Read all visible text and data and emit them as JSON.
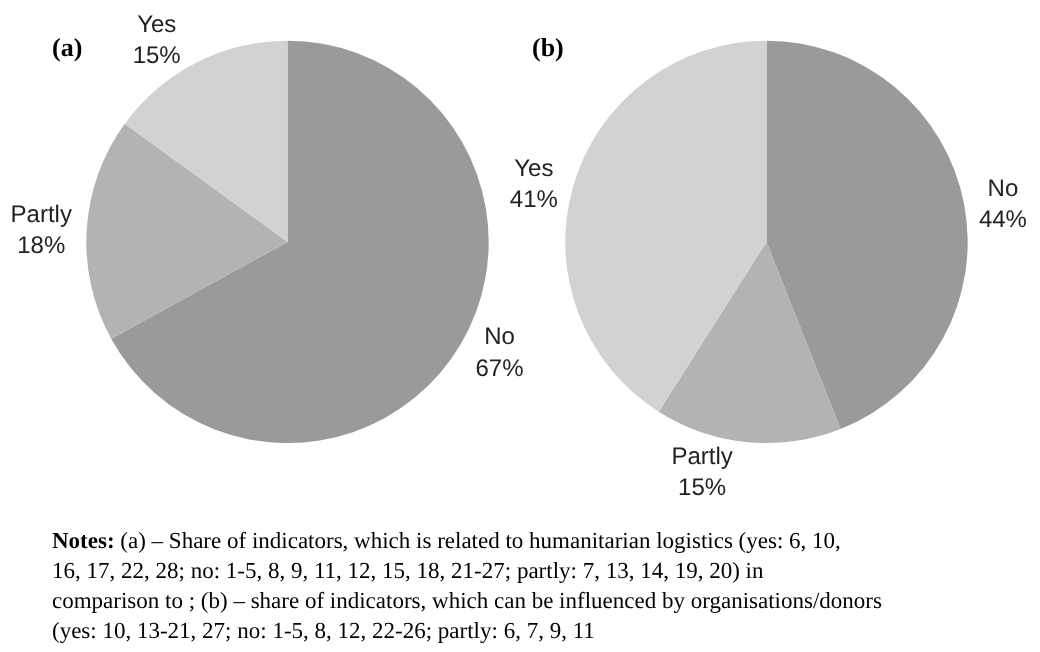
{
  "chart_data": [
    {
      "type": "pie",
      "title": "(a)",
      "categories": [
        "No",
        "Partly",
        "Yes"
      ],
      "values": [
        67,
        18,
        15
      ],
      "value_labels": [
        "67%",
        "18%",
        "15%"
      ],
      "colors": [
        "#9a9a9c",
        "#b3b3b5",
        "#d2d2d4"
      ],
      "legend": false
    },
    {
      "type": "pie",
      "title": "(b)",
      "categories": [
        "No",
        "Partly",
        "Yes"
      ],
      "values": [
        44,
        15,
        41
      ],
      "value_labels": [
        "44%",
        "15%",
        "41%"
      ],
      "colors": [
        "#9a9a9c",
        "#b3b3b5",
        "#d2d2d4"
      ],
      "legend": false,
      "annotations": [
        "Notes: (a) – Share of indicators, which is related to humanitarian logistics (yes: 6, 10, 16, 17, 22, 28; no: 1-5, 8, 9, 11, 12, 15, 18, 21-27; partly: 7, 13, 14, 19, 20) in comparison to ; (b) – share of indicators, which can be influenced by organisations/donors (yes: 10, 13-21, 27; no: 1-5, 8, 12, 22-26; partly: 6, 7, 9, 11"
      ]
    }
  ]
}
